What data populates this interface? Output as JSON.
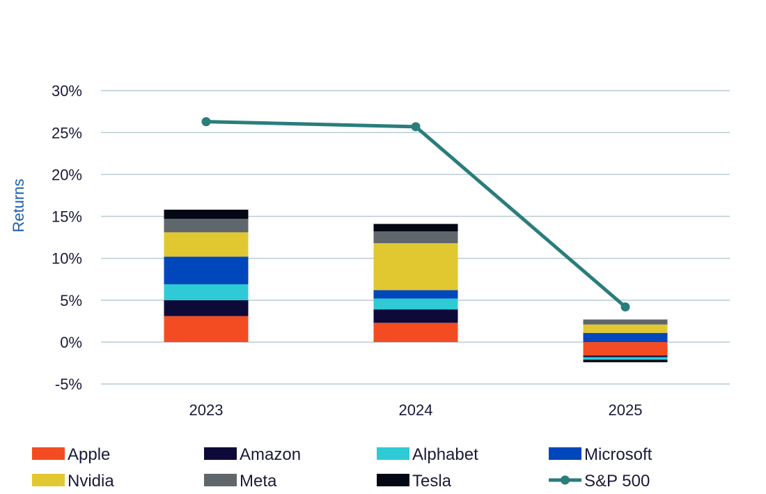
{
  "chart_data": {
    "type": "bar",
    "stacked": true,
    "title": "",
    "xlabel": "",
    "ylabel": "Returns",
    "ylim": [
      -5,
      30
    ],
    "yticks": [
      -5,
      0,
      5,
      10,
      15,
      20,
      25,
      30
    ],
    "ytick_labels": [
      "-5%",
      "0%",
      "5%",
      "10%",
      "15%",
      "20%",
      "25%",
      "30%"
    ],
    "categories": [
      "2023",
      "2024",
      "2025"
    ],
    "series": [
      {
        "name": "Apple",
        "color": "#f44c22",
        "values": [
          3.1,
          2.3,
          -1.6
        ]
      },
      {
        "name": "Amazon",
        "color": "#0d0a3a",
        "values": [
          1.9,
          1.6,
          -0.2
        ]
      },
      {
        "name": "Alphabet",
        "color": "#2ecad6",
        "values": [
          1.9,
          1.3,
          -0.3
        ]
      },
      {
        "name": "Microsoft",
        "color": "#0047bb",
        "values": [
          3.3,
          1.0,
          1.1
        ]
      },
      {
        "name": "Nvidia",
        "color": "#e1c830",
        "values": [
          2.9,
          5.6,
          1.0
        ]
      },
      {
        "name": "Meta",
        "color": "#5f676c",
        "values": [
          1.6,
          1.4,
          0.6
        ]
      },
      {
        "name": "Tesla",
        "color": "#040814",
        "values": [
          1.1,
          0.9,
          -0.3
        ]
      }
    ],
    "line_series": {
      "name": "S&P 500",
      "color": "#2a7d7b",
      "values": [
        26.3,
        25.7,
        4.2
      ]
    },
    "legend_position": "bottom"
  }
}
